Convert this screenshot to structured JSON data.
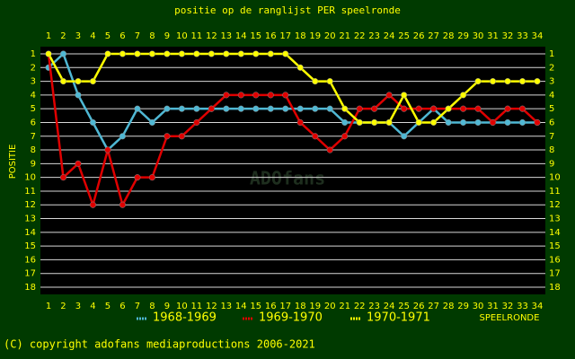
{
  "chart_data": {
    "type": "line",
    "title": "positie op de ranglijst PER speelronde",
    "ylabel": "POSITIE",
    "xlabel": "SPEELRONDE",
    "watermark": "ADOfans",
    "footer": "(C) copyright adofans mediaproductions 2006-2021",
    "x": [
      1,
      2,
      3,
      4,
      5,
      6,
      7,
      8,
      9,
      10,
      11,
      12,
      13,
      14,
      15,
      16,
      17,
      18,
      19,
      20,
      21,
      22,
      23,
      24,
      25,
      26,
      27,
      28,
      29,
      30,
      31,
      32,
      33,
      34
    ],
    "xlim": [
      1,
      34
    ],
    "xticks": [
      1,
      2,
      3,
      4,
      5,
      6,
      7,
      8,
      9,
      10,
      11,
      12,
      13,
      14,
      15,
      16,
      17,
      18,
      19,
      20,
      21,
      22,
      23,
      24,
      25,
      26,
      27,
      28,
      29,
      30,
      31,
      32,
      33,
      34
    ],
    "ylim": [
      1,
      18
    ],
    "y_inverted": true,
    "yticks": [
      1,
      2,
      3,
      4,
      5,
      6,
      7,
      8,
      9,
      10,
      11,
      12,
      13,
      14,
      15,
      16,
      17,
      18
    ],
    "grid": true,
    "series": [
      {
        "name": "1968-1969",
        "color": "#4fb8d4",
        "values": [
          2,
          1,
          4,
          6,
          8,
          7,
          5,
          6,
          5,
          5,
          5,
          5,
          5,
          5,
          5,
          5,
          5,
          5,
          5,
          5,
          6,
          6,
          6,
          6,
          7,
          6,
          5,
          6,
          6,
          6,
          6,
          6,
          6,
          6
        ]
      },
      {
        "name": "1969-1970",
        "color": "#e00000",
        "values": [
          1,
          10,
          9,
          12,
          8,
          12,
          10,
          10,
          7,
          7,
          6,
          5,
          4,
          4,
          4,
          4,
          4,
          6,
          7,
          8,
          7,
          5,
          5,
          4,
          5,
          5,
          5,
          5,
          5,
          5,
          6,
          5,
          5,
          6
        ]
      },
      {
        "name": "1970-1971",
        "color": "#ffff00",
        "values": [
          1,
          3,
          3,
          3,
          1,
          1,
          1,
          1,
          1,
          1,
          1,
          1,
          1,
          1,
          1,
          1,
          1,
          2,
          3,
          3,
          5,
          6,
          6,
          6,
          4,
          6,
          6,
          5,
          4,
          3,
          3,
          3,
          3,
          3
        ]
      }
    ]
  }
}
